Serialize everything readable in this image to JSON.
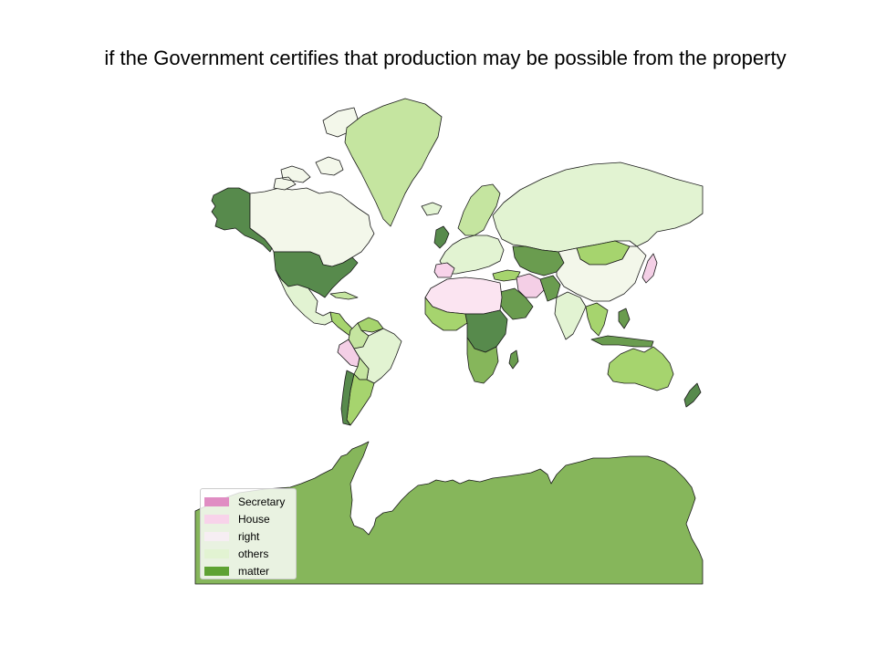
{
  "title": "if the Government certifies that production may be possible from the property",
  "legend": {
    "placement": "lower-left",
    "items": [
      {
        "label": "Secretary",
        "color": "#e08dc3"
      },
      {
        "label": "House",
        "color": "#f8d3ea"
      },
      {
        "label": "right",
        "color": "#f6eef3"
      },
      {
        "label": "others",
        "color": "#e2f3d2"
      },
      {
        "label": "matter",
        "color": "#5ea233"
      }
    ]
  },
  "map": {
    "projection": "mercator",
    "regions": [
      {
        "name": "Greenland",
        "color": "#c5e5a0"
      },
      {
        "name": "Alaska",
        "color": "#578a4c"
      },
      {
        "name": "Canada",
        "color": "#f3f7ea"
      },
      {
        "name": "United States",
        "color": "#578a4c"
      },
      {
        "name": "Mexico",
        "color": "#e2f3d2"
      },
      {
        "name": "Central America",
        "color": "#a6d46e"
      },
      {
        "name": "Colombia",
        "color": "#c5e5a0"
      },
      {
        "name": "Venezuela",
        "color": "#a6d46e"
      },
      {
        "name": "Peru",
        "color": "#f4cfe6"
      },
      {
        "name": "Brazil",
        "color": "#e2f3d2"
      },
      {
        "name": "Bolivia",
        "color": "#c5e5a0"
      },
      {
        "name": "Argentina",
        "color": "#a6d46e"
      },
      {
        "name": "Chile",
        "color": "#578a4c"
      },
      {
        "name": "Russia",
        "color": "#e2f3d2"
      },
      {
        "name": "China",
        "color": "#f3f7ea"
      },
      {
        "name": "Kazakhstan",
        "color": "#6a9c4f"
      },
      {
        "name": "Mongolia",
        "color": "#a6d46e"
      },
      {
        "name": "Iran",
        "color": "#f4cfe6"
      },
      {
        "name": "Saudi Arabia",
        "color": "#6a9c4f"
      },
      {
        "name": "India",
        "color": "#e2f3d2"
      },
      {
        "name": "Australia",
        "color": "#a6d46e"
      },
      {
        "name": "Antarctica",
        "color": "#86b65b"
      }
    ]
  }
}
